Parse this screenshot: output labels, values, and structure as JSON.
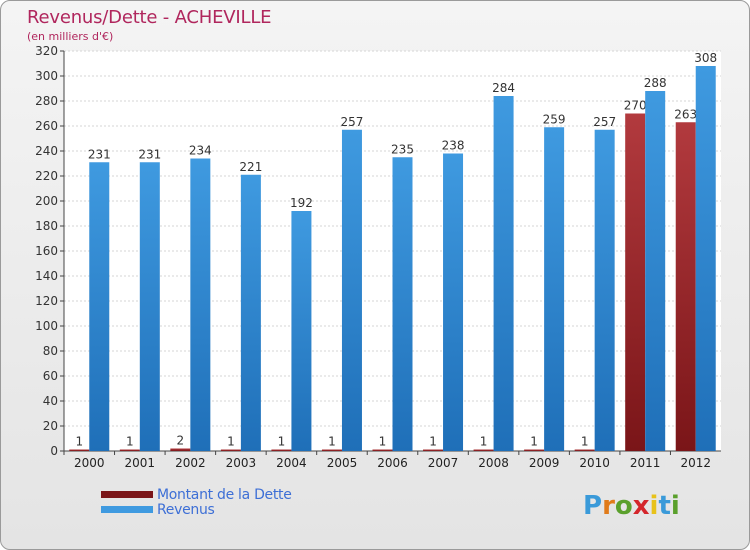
{
  "title": "Revenus/Dette - ACHEVILLE",
  "subtitle": "(en milliers d'€)",
  "brand": {
    "letters": [
      "P",
      "r",
      "o",
      "x",
      "i",
      "t",
      "i"
    ],
    "colors": [
      "#3a9ad9",
      "#e07b1a",
      "#5aa02c",
      "#d4262b",
      "#e8c21a",
      "#3a9ad9",
      "#5aa02c"
    ]
  },
  "colors": {
    "dette": "#7a1518",
    "revenus": "#3f9ae0",
    "dette_light": "#b23a3e",
    "revenus_dark": "#1f6fb8"
  },
  "chart_data": {
    "type": "bar",
    "categories": [
      "2000",
      "2001",
      "2002",
      "2003",
      "2004",
      "2005",
      "2006",
      "2007",
      "2008",
      "2009",
      "2010",
      "2011",
      "2012"
    ],
    "series": [
      {
        "name": "Montant de la Dette",
        "values": [
          1,
          1,
          2,
          1,
          1,
          1,
          1,
          1,
          1,
          1,
          1,
          270,
          263
        ]
      },
      {
        "name": "Revenus",
        "values": [
          231,
          231,
          234,
          221,
          192,
          257,
          235,
          238,
          284,
          259,
          257,
          288,
          308
        ]
      }
    ],
    "yticks": [
      0,
      20,
      40,
      60,
      80,
      100,
      120,
      140,
      160,
      180,
      200,
      220,
      240,
      260,
      280,
      300,
      320
    ],
    "ylim": [
      0,
      320
    ],
    "grid": true,
    "legend_position": "bottom-left"
  }
}
